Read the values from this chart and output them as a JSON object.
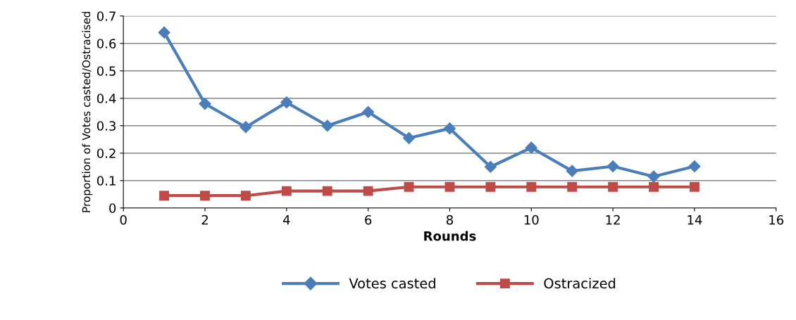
{
  "chart_data": {
    "type": "line",
    "xlabel": "Rounds",
    "ylabel": "Proportion of Votes casted/Ostracised",
    "x": [
      1,
      2,
      3,
      4,
      5,
      6,
      7,
      8,
      9,
      10,
      11,
      12,
      13,
      14
    ],
    "series": [
      {
        "name": "Votes casted",
        "color": "#4a7ebb",
        "marker": "diamond",
        "values": [
          0.64,
          0.38,
          0.295,
          0.385,
          0.3,
          0.35,
          0.255,
          0.29,
          0.15,
          0.22,
          0.135,
          0.152,
          0.115,
          0.152
        ]
      },
      {
        "name": "Ostracized",
        "color": "#be4b48",
        "marker": "square",
        "values": [
          0.045,
          0.045,
          0.045,
          0.062,
          0.062,
          0.062,
          0.077,
          0.077,
          0.077,
          0.077,
          0.077,
          0.077,
          0.077,
          0.077
        ]
      }
    ],
    "xlim": [
      0,
      16
    ],
    "xticks": [
      0,
      2,
      4,
      6,
      8,
      10,
      12,
      14,
      16
    ],
    "ylim": [
      0,
      0.7
    ],
    "yticks": [
      0,
      0.1,
      0.2,
      0.3,
      0.4,
      0.5,
      0.6,
      0.7
    ],
    "grid": "y",
    "legend": "bottom",
    "line_style": "solid"
  }
}
